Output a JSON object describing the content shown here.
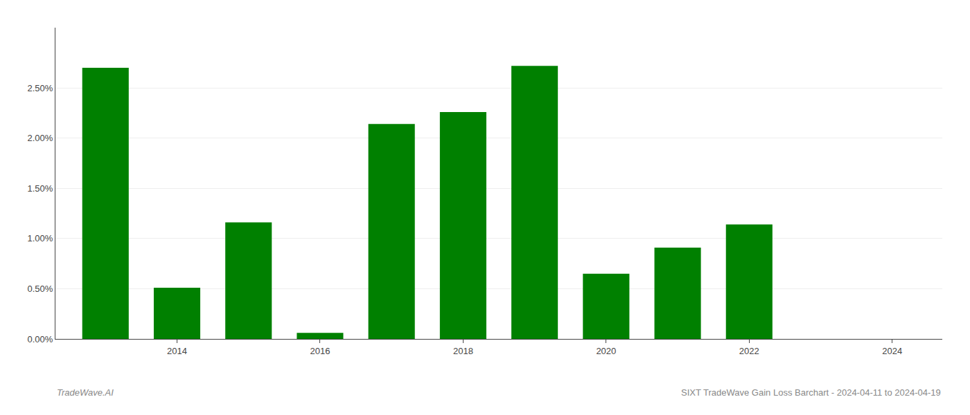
{
  "chart_data": {
    "type": "bar",
    "x": [
      2013,
      2014,
      2015,
      2016,
      2017,
      2018,
      2019,
      2020,
      2021,
      2022
    ],
    "values": [
      2.7,
      0.51,
      1.16,
      0.06,
      2.14,
      2.26,
      2.72,
      0.65,
      0.91,
      1.14
    ],
    "color": "#008000",
    "xlim": [
      2012.3,
      2024.7
    ],
    "xticks": [
      2014,
      2016,
      2018,
      2020,
      2022,
      2024
    ],
    "ylim": [
      0,
      3.1
    ],
    "yticks": [
      {
        "value": 0.0,
        "label": "0.00%"
      },
      {
        "value": 0.5,
        "label": "0.50%"
      },
      {
        "value": 1.0,
        "label": "1.00%"
      },
      {
        "value": 1.5,
        "label": "1.50%"
      },
      {
        "value": 2.0,
        "label": "2.00%"
      },
      {
        "value": 2.5,
        "label": "2.50%"
      }
    ],
    "grid": true,
    "annotations": [
      "TradeWave.AI",
      "SIXT TradeWave Gain Loss Barchart - 2024-04-11 to 2024-04-19"
    ]
  }
}
